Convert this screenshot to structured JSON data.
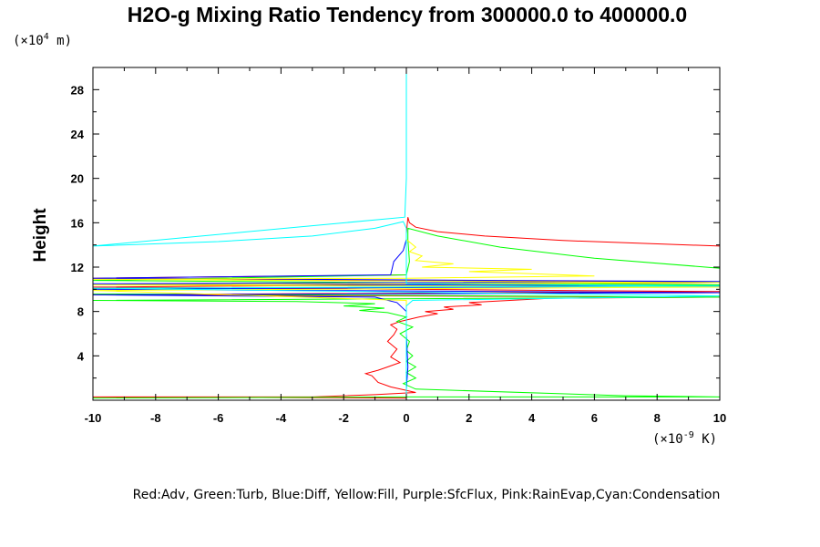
{
  "chart_data": {
    "type": "line",
    "title": "H2O-g Mixing Ratio Tendency from 300000.0 to 400000.0",
    "ylabel": "Height",
    "y_unit_prefix": "(×10",
    "y_unit_exp": "4",
    "y_unit_suffix": " m)",
    "x_unit_prefix": "(×10",
    "x_unit_exp": "-9",
    "x_unit_suffix": " K)",
    "legend_text": "Red:Adv, Green:Turb, Blue:Diff, Yellow:Fill, Purple:SfcFlux, Pink:RainEvap,Cyan:Condensation",
    "xlim": [
      -10,
      10
    ],
    "ylim": [
      0,
      30
    ],
    "x_ticks": [
      -10,
      -8,
      -6,
      -4,
      -2,
      0,
      2,
      4,
      6,
      8,
      10
    ],
    "y_ticks": [
      4,
      8,
      12,
      16,
      20,
      24,
      28
    ],
    "series": [
      {
        "name": "Adv",
        "color": "#ff0000",
        "points": [
          [
            0,
            0.2
          ],
          [
            -10,
            0.3
          ],
          [
            -3,
            0.3
          ],
          [
            -1,
            0.5
          ],
          [
            0.3,
            0.7
          ],
          [
            -0.5,
            1.2
          ],
          [
            -0.9,
            1.6
          ],
          [
            -1.1,
            2.2
          ],
          [
            -1.3,
            2.4
          ],
          [
            -0.9,
            2.7
          ],
          [
            -0.6,
            3.0
          ],
          [
            -0.2,
            3.4
          ],
          [
            -0.5,
            3.9
          ],
          [
            -0.3,
            4.6
          ],
          [
            -0.6,
            5.3
          ],
          [
            -0.4,
            5.9
          ],
          [
            -0.3,
            6.4
          ],
          [
            -0.5,
            6.8
          ],
          [
            -0.2,
            7.1
          ],
          [
            0.4,
            7.5
          ],
          [
            1.0,
            7.8
          ],
          [
            0.6,
            8.0
          ],
          [
            1.5,
            8.2
          ],
          [
            1.2,
            8.4
          ],
          [
            2.4,
            8.6
          ],
          [
            2.0,
            8.8
          ],
          [
            3.3,
            9.0
          ],
          [
            4.6,
            9.2
          ],
          [
            10,
            9.3
          ],
          [
            0,
            9.4
          ],
          [
            -10,
            9.5
          ],
          [
            10,
            9.8
          ],
          [
            -10,
            10.2
          ],
          [
            10,
            10.6
          ],
          [
            -10,
            11.0
          ],
          [
            0,
            11.3
          ],
          [
            0,
            15.0
          ],
          [
            0.05,
            16.5
          ],
          [
            0.1,
            16.0
          ],
          [
            0.3,
            15.6
          ],
          [
            1.0,
            15.2
          ],
          [
            2.5,
            14.8
          ],
          [
            5,
            14.4
          ],
          [
            10,
            13.9
          ]
        ]
      },
      {
        "name": "Turb",
        "color": "#00ff00",
        "points": [
          [
            -10,
            0.2
          ],
          [
            0,
            0.3
          ],
          [
            10,
            0.3
          ],
          [
            7,
            0.4
          ],
          [
            0.3,
            1.0
          ],
          [
            -0.1,
            1.5
          ],
          [
            0.3,
            2.0
          ],
          [
            0.0,
            2.5
          ],
          [
            0.3,
            3.0
          ],
          [
            0.0,
            3.5
          ],
          [
            0.2,
            4.0
          ],
          [
            0.0,
            4.5
          ],
          [
            0.1,
            5.3
          ],
          [
            -0.2,
            6.0
          ],
          [
            0.2,
            6.6
          ],
          [
            -0.3,
            7.1
          ],
          [
            0.0,
            7.5
          ],
          [
            -0.6,
            7.9
          ],
          [
            -1.5,
            8.1
          ],
          [
            -0.7,
            8.3
          ],
          [
            -2.0,
            8.5
          ],
          [
            -1.0,
            8.7
          ],
          [
            -3.5,
            8.9
          ],
          [
            -10,
            9.0
          ],
          [
            10,
            9.3
          ],
          [
            -10,
            9.6
          ],
          [
            -10,
            10.0
          ],
          [
            10,
            10.4
          ],
          [
            -10,
            10.8
          ],
          [
            0,
            11.3
          ],
          [
            0.1,
            12.5
          ],
          [
            0.05,
            14.5
          ],
          [
            0.05,
            15.5
          ],
          [
            1.0,
            14.8
          ],
          [
            3,
            13.8
          ],
          [
            6,
            12.8
          ],
          [
            10,
            11.9
          ]
        ]
      },
      {
        "name": "Diff",
        "color": "#0000ff",
        "points": [
          [
            0,
            0.0
          ],
          [
            0.0,
            1.0
          ],
          [
            0.05,
            3.0
          ],
          [
            0.0,
            6.0
          ],
          [
            0.0,
            8.0
          ],
          [
            -0.3,
            8.8
          ],
          [
            -1.0,
            9.3
          ],
          [
            -10,
            9.5
          ],
          [
            10,
            9.7
          ],
          [
            -10,
            10.0
          ],
          [
            10,
            10.3
          ],
          [
            -10,
            10.5
          ],
          [
            10,
            10.7
          ],
          [
            -10,
            11.0
          ],
          [
            -0.5,
            11.3
          ],
          [
            -0.4,
            12.5
          ],
          [
            -0.1,
            13.5
          ],
          [
            0,
            14.5
          ]
        ]
      },
      {
        "name": "Fill",
        "color": "#ffff00",
        "points": [
          [
            0,
            0.0
          ],
          [
            0.0,
            8.0
          ],
          [
            0.0,
            9.0
          ],
          [
            -10,
            9.9
          ],
          [
            10,
            10.2
          ],
          [
            -10,
            10.4
          ],
          [
            10,
            10.6
          ],
          [
            -10,
            10.9
          ],
          [
            0,
            11.0
          ],
          [
            6,
            11.2
          ],
          [
            4,
            11.4
          ],
          [
            2,
            11.6
          ],
          [
            4,
            11.8
          ],
          [
            0.5,
            12.0
          ],
          [
            1.5,
            12.3
          ],
          [
            0.3,
            12.6
          ],
          [
            0.5,
            13.0
          ],
          [
            0.1,
            13.4
          ],
          [
            0.3,
            13.8
          ],
          [
            0,
            14.5
          ]
        ]
      },
      {
        "name": "SfcFlux",
        "color": "#ff00ff",
        "points": []
      },
      {
        "name": "RainEvap",
        "color": "#ffc0cb",
        "points": []
      },
      {
        "name": "Condensation",
        "color": "#00ffff",
        "points": [
          [
            0,
            0.0
          ],
          [
            0,
            8.5
          ],
          [
            0.2,
            9.0
          ],
          [
            10,
            9.4
          ],
          [
            -10,
            10.1
          ],
          [
            10,
            10.3
          ],
          [
            0,
            10.5
          ],
          [
            0,
            11.0
          ],
          [
            0,
            15.5
          ],
          [
            -0.1,
            16.1
          ],
          [
            -1.0,
            15.5
          ],
          [
            -3,
            14.8
          ],
          [
            -6,
            14.3
          ],
          [
            -10,
            13.9
          ],
          [
            -0.05,
            16.5
          ],
          [
            0,
            20.0
          ],
          [
            0,
            30.0
          ]
        ]
      }
    ]
  }
}
